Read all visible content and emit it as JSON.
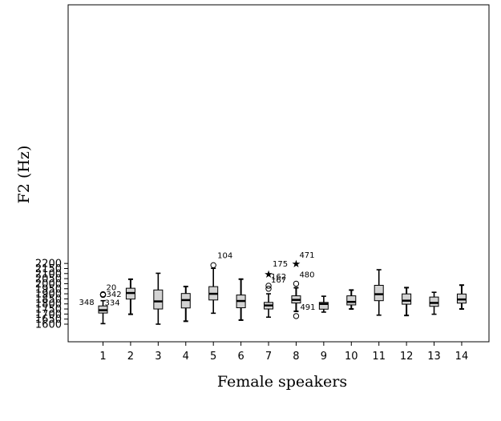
{
  "chart_data": {
    "type": "boxplot",
    "xlabel": "Female speakers",
    "ylabel": "F2 (Hz)",
    "ylim": [
      1560,
      2230
    ],
    "yticks": [
      1600,
      1650,
      1700,
      1750,
      1800,
      1850,
      1900,
      1950,
      2000,
      2050,
      2100,
      2150,
      2200
    ],
    "categories": [
      "1",
      "2",
      "3",
      "4",
      "5",
      "6",
      "7",
      "8",
      "9",
      "10",
      "11",
      "12",
      "13",
      "14"
    ],
    "boxes": [
      {
        "category": "1",
        "whisker_low": 1605,
        "q1": 1710,
        "median": 1738,
        "q3": 1780,
        "whisker_high": 1832
      },
      {
        "category": "2",
        "whisker_low": 1698,
        "q1": 1848,
        "median": 1908,
        "q3": 1955,
        "whisker_high": 2044
      },
      {
        "category": "3",
        "whisker_low": 1600,
        "q1": 1750,
        "median": 1825,
        "q3": 1938,
        "whisker_high": 2103
      },
      {
        "category": "4",
        "whisker_low": 1629,
        "q1": 1760,
        "median": 1838,
        "q3": 1903,
        "whisker_high": 1972
      },
      {
        "category": "5",
        "whisker_low": 1708,
        "q1": 1839,
        "median": 1900,
        "q3": 1971,
        "whisker_high": 2152
      },
      {
        "category": "6",
        "whisker_low": 1640,
        "q1": 1762,
        "median": 1829,
        "q3": 1888,
        "whisker_high": 2045
      },
      {
        "category": "7",
        "whisker_low": 1669,
        "q1": 1750,
        "median": 1785,
        "q3": 1815,
        "whisker_high": 1900
      },
      {
        "category": "8",
        "whisker_low": 1727,
        "q1": 1809,
        "median": 1840,
        "q3": 1880,
        "whisker_high": 1960
      },
      {
        "category": "9",
        "whisker_low": 1719,
        "q1": 1748,
        "median": 1800,
        "q3": 1815,
        "whisker_high": 1876
      },
      {
        "category": "10",
        "whisker_low": 1750,
        "q1": 1790,
        "median": 1820,
        "q3": 1880,
        "whisker_high": 1937
      },
      {
        "category": "11",
        "whisker_low": 1689,
        "q1": 1832,
        "median": 1896,
        "q3": 1984,
        "whisker_high": 2138
      },
      {
        "category": "12",
        "whisker_low": 1686,
        "q1": 1797,
        "median": 1832,
        "q3": 1899,
        "whisker_high": 1961
      },
      {
        "category": "13",
        "whisker_low": 1698,
        "q1": 1776,
        "median": 1810,
        "q3": 1868,
        "whisker_high": 1915
      },
      {
        "category": "14",
        "whisker_low": 1750,
        "q1": 1808,
        "median": 1844,
        "q3": 1898,
        "whisker_high": 1986
      }
    ],
    "outliers": [
      {
        "category": "1",
        "value": 1896,
        "marker": "circle",
        "label": "20"
      },
      {
        "category": "1",
        "value": 1893,
        "marker": "circle",
        "label": "342"
      },
      {
        "category": "1",
        "value": 1891,
        "marker": "circle",
        "label": "348"
      },
      {
        "category": "1",
        "value": 1889,
        "marker": "circle",
        "label": "334"
      },
      {
        "category": "5",
        "value": 2183,
        "marker": "circle",
        "label": "104"
      },
      {
        "category": "7",
        "value": 2100,
        "marker": "star",
        "label": "175"
      },
      {
        "category": "7",
        "value": 1980,
        "marker": "circle",
        "label": "162"
      },
      {
        "category": "7",
        "value": 1950,
        "marker": "circle",
        "label": "167"
      },
      {
        "category": "8",
        "value": 2200,
        "marker": "star",
        "label": "471"
      },
      {
        "category": "8",
        "value": 2000,
        "marker": "circle",
        "label": "480"
      },
      {
        "category": "8",
        "value": 1680,
        "marker": "circle",
        "label": "491"
      }
    ],
    "colors": {
      "box_fill": "#d3d3d3",
      "stroke": "#000000",
      "background": "#ffffff"
    },
    "grid": false,
    "legend": "none"
  }
}
